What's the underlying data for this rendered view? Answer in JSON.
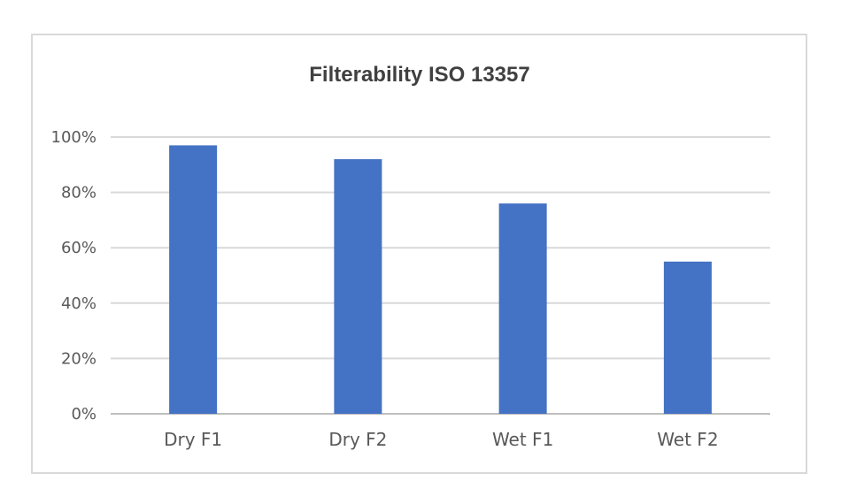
{
  "chart_data": {
    "type": "bar",
    "title": "Filterability ISO 13357",
    "categories": [
      "Dry F1",
      "Dry F2",
      "Wet F1",
      "Wet F2"
    ],
    "values": [
      97,
      92,
      76,
      55
    ],
    "ylim": [
      0,
      100
    ],
    "yticks": [
      0,
      20,
      40,
      60,
      80,
      100
    ],
    "ytick_labels": [
      "0%",
      "20%",
      "40%",
      "60%",
      "80%",
      "100%"
    ],
    "xlabel": "",
    "ylabel": "",
    "grid": true,
    "legend": "none",
    "colors": {
      "bar": "#4472C4",
      "grid": "#d9d9d9",
      "axis": "#bfbfbf"
    }
  }
}
